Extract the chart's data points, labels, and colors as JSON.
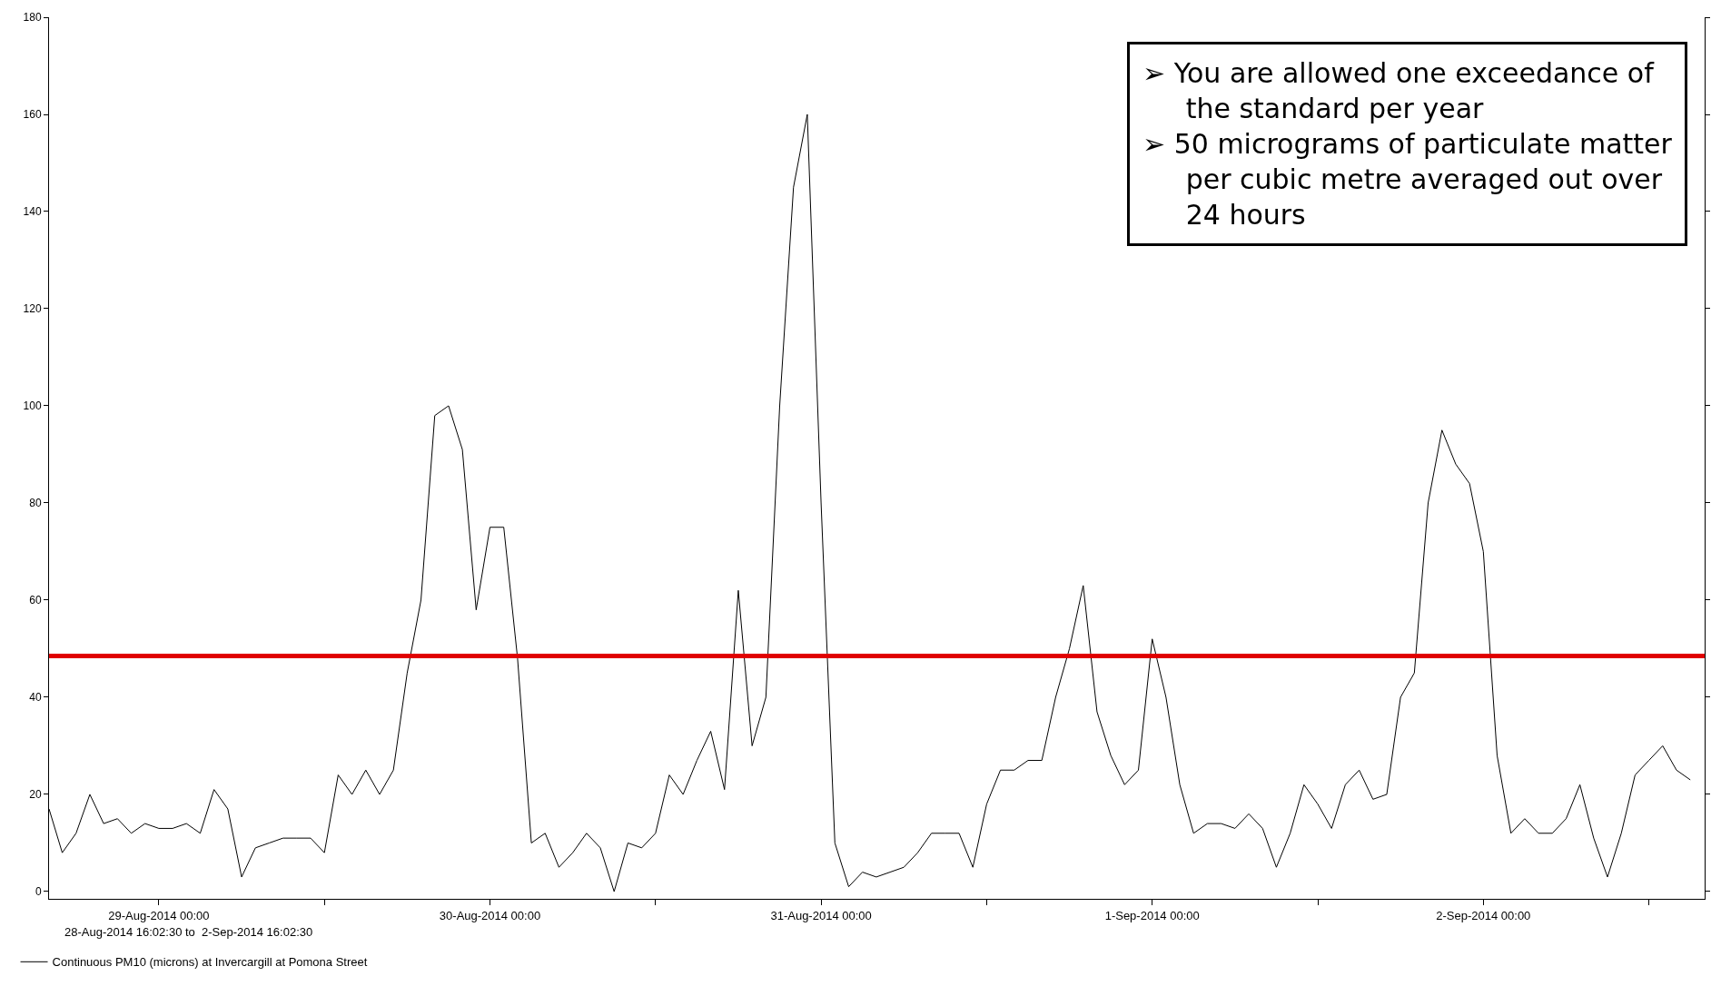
{
  "chart_data": {
    "type": "line",
    "x": [
      "2014-08-28T16:02:30",
      "2014-08-28T17:00",
      "2014-08-28T18:00",
      "2014-08-28T19:00",
      "2014-08-28T20:00",
      "2014-08-28T21:00",
      "2014-08-28T22:00",
      "2014-08-28T23:00",
      "2014-08-29T00:00",
      "2014-08-29T01:00",
      "2014-08-29T02:00",
      "2014-08-29T03:00",
      "2014-08-29T04:00",
      "2014-08-29T05:00",
      "2014-08-29T06:00",
      "2014-08-29T07:00",
      "2014-08-29T08:00",
      "2014-08-29T09:00",
      "2014-08-29T10:00",
      "2014-08-29T11:00",
      "2014-08-29T12:00",
      "2014-08-29T13:00",
      "2014-08-29T14:00",
      "2014-08-29T15:00",
      "2014-08-29T16:00",
      "2014-08-29T17:00",
      "2014-08-29T18:00",
      "2014-08-29T19:00",
      "2014-08-29T20:00",
      "2014-08-29T21:00",
      "2014-08-29T22:00",
      "2014-08-29T23:00",
      "2014-08-30T00:00",
      "2014-08-30T01:00",
      "2014-08-30T02:00",
      "2014-08-30T03:00",
      "2014-08-30T04:00",
      "2014-08-30T05:00",
      "2014-08-30T06:00",
      "2014-08-30T07:00",
      "2014-08-30T08:00",
      "2014-08-30T09:00",
      "2014-08-30T10:00",
      "2014-08-30T11:00",
      "2014-08-30T12:00",
      "2014-08-30T13:00",
      "2014-08-30T14:00",
      "2014-08-30T15:00",
      "2014-08-30T16:00",
      "2014-08-30T17:00",
      "2014-08-30T18:00",
      "2014-08-30T19:00",
      "2014-08-30T20:00",
      "2014-08-30T21:00",
      "2014-08-30T22:00",
      "2014-08-30T23:00",
      "2014-08-31T00:00",
      "2014-08-31T01:00",
      "2014-08-31T02:00",
      "2014-08-31T03:00",
      "2014-08-31T04:00",
      "2014-08-31T05:00",
      "2014-08-31T06:00",
      "2014-08-31T07:00",
      "2014-08-31T08:00",
      "2014-08-31T09:00",
      "2014-08-31T10:00",
      "2014-08-31T11:00",
      "2014-08-31T12:00",
      "2014-08-31T13:00",
      "2014-08-31T14:00",
      "2014-08-31T15:00",
      "2014-08-31T16:00",
      "2014-08-31T17:00",
      "2014-08-31T18:00",
      "2014-08-31T19:00",
      "2014-08-31T20:00",
      "2014-08-31T21:00",
      "2014-08-31T22:00",
      "2014-08-31T23:00",
      "2014-09-01T00:00",
      "2014-09-01T01:00",
      "2014-09-01T02:00",
      "2014-09-01T03:00",
      "2014-09-01T04:00",
      "2014-09-01T05:00",
      "2014-09-01T06:00",
      "2014-09-01T07:00",
      "2014-09-01T08:00",
      "2014-09-01T09:00",
      "2014-09-01T10:00",
      "2014-09-01T11:00",
      "2014-09-01T12:00",
      "2014-09-01T13:00",
      "2014-09-01T14:00",
      "2014-09-01T15:00",
      "2014-09-01T16:00",
      "2014-09-01T17:00",
      "2014-09-01T18:00",
      "2014-09-01T19:00",
      "2014-09-01T20:00",
      "2014-09-01T21:00",
      "2014-09-01T22:00",
      "2014-09-01T23:00",
      "2014-09-02T00:00",
      "2014-09-02T01:00",
      "2014-09-02T02:00",
      "2014-09-02T03:00",
      "2014-09-02T04:00",
      "2014-09-02T05:00",
      "2014-09-02T06:00",
      "2014-09-02T07:00",
      "2014-09-02T08:00",
      "2014-09-02T09:00",
      "2014-09-02T10:00",
      "2014-09-02T11:00",
      "2014-09-02T12:00",
      "2014-09-02T13:00",
      "2014-09-02T14:00",
      "2014-09-02T15:00"
    ],
    "series": [
      {
        "name": "Continuous PM10 (microns) at Invercargill at Pomona Street",
        "color": "#000000",
        "values": [
          17,
          8,
          12,
          20,
          14,
          15,
          12,
          14,
          13,
          13,
          14,
          12,
          21,
          17,
          3,
          9,
          10,
          11,
          11,
          11,
          8,
          24,
          20,
          25,
          20,
          25,
          45,
          60,
          98,
          100,
          91,
          58,
          75,
          75,
          48,
          10,
          12,
          5,
          8,
          12,
          9,
          0,
          10,
          9,
          12,
          24,
          20,
          27,
          33,
          21,
          62,
          30,
          40,
          100,
          145,
          160,
          80,
          10,
          1,
          4,
          3,
          4,
          5,
          8,
          12,
          12,
          12,
          5,
          18,
          25,
          25,
          27,
          27,
          40,
          50,
          63,
          37,
          28,
          22,
          25,
          52,
          40,
          22,
          12,
          14,
          14,
          13,
          16,
          13,
          5,
          12,
          22,
          18,
          13,
          22,
          25,
          19,
          20,
          40,
          45,
          80,
          95,
          88,
          84,
          70,
          28,
          12,
          15,
          12,
          12,
          15,
          22,
          11,
          3,
          12,
          24,
          27,
          30,
          25,
          23
        ]
      }
    ],
    "xlim": [
      "2014-08-28T16:02:30",
      "2014-09-02T16:02:30"
    ],
    "xticks": [
      {
        "value": "2014-08-29T00:00",
        "label": "29-Aug-2014 00:00"
      },
      {
        "value": "2014-08-29T12:00",
        "label": null
      },
      {
        "value": "2014-08-30T00:00",
        "label": "30-Aug-2014 00:00"
      },
      {
        "value": "2014-08-30T12:00",
        "label": null
      },
      {
        "value": "2014-08-31T00:00",
        "label": "31-Aug-2014 00:00"
      },
      {
        "value": "2014-08-31T12:00",
        "label": null
      },
      {
        "value": "2014-09-01T00:00",
        "label": "1-Sep-2014 00:00"
      },
      {
        "value": "2014-09-01T12:00",
        "label": null
      },
      {
        "value": "2014-09-02T00:00",
        "label": "2-Sep-2014 00:00"
      },
      {
        "value": "2014-09-02T12:00",
        "label": null
      }
    ],
    "ylim": [
      -1.5,
      180
    ],
    "yticks": [
      0,
      20,
      40,
      60,
      80,
      100,
      120,
      140,
      160,
      180
    ],
    "ref_lines": [
      {
        "axis": "y",
        "value": 48.5,
        "color": "#e00000"
      }
    ],
    "annotations": [
      "➢ You are allowed one exceedance of\n     the standard per year\n➢ 50 micrograms of particulate matter\n     per cubic metre averaged out over\n     24 hours",
      "28-Aug-2014 16:02:30 to  2-Sep-2014 16:02:30"
    ],
    "legend": "bottom left"
  }
}
